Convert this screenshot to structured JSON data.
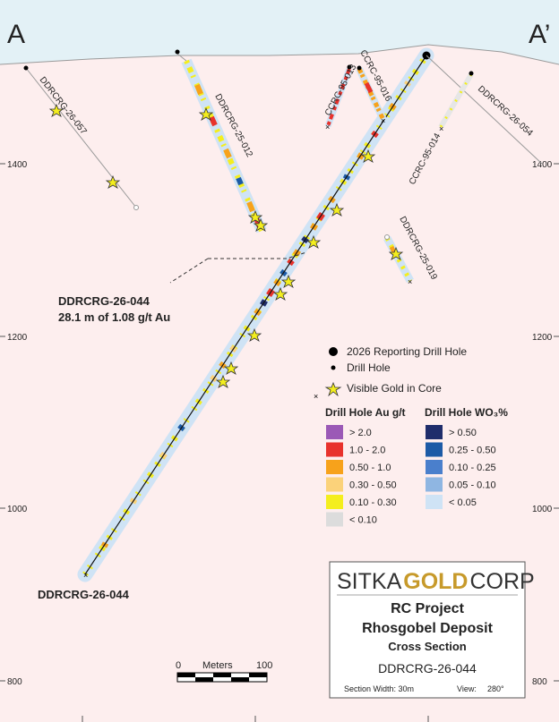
{
  "section": {
    "label_left": "A",
    "label_right": "A’",
    "elevations_left": [
      "1400",
      "1200",
      "1000",
      "800"
    ],
    "elevations_right": [
      "1400",
      "1200",
      "1000",
      "800"
    ]
  },
  "holes": [
    {
      "name": "DDRCRG-26-057"
    },
    {
      "name": "DDRCRG-25-012"
    },
    {
      "name": "CCRC-95-013"
    },
    {
      "name": "CCRC-95-016"
    },
    {
      "name": "DDRCRG-26-054"
    },
    {
      "name": "CCRC-95-014"
    },
    {
      "name": "DDRCRG-25-019"
    },
    {
      "name": "DDRCRG-26-044"
    }
  ],
  "callout": {
    "line1": "DDRCRG-26-044",
    "line2": "28.1 m of 1.08 g/t Au"
  },
  "legend": {
    "reporting_hole": "2026 Reporting Drill Hole",
    "drill_hole": "Drill Hole",
    "visible_gold": "Visible Gold in Core",
    "au_title": "Drill Hole Au g/t",
    "au_classes": [
      {
        "label": "> 2.0",
        "color": "#9b59b6"
      },
      {
        "label": "1.0 - 2.0",
        "color": "#e8322c"
      },
      {
        "label": "0.50 - 1.0",
        "color": "#f7a21b"
      },
      {
        "label": "0.30 - 0.50",
        "color": "#fbd27a"
      },
      {
        "label": "0.10 - 0.30",
        "color": "#f4ee1e"
      },
      {
        "label": "< 0.10",
        "color": "#dcdcdc"
      }
    ],
    "wo3_title": "Drill Hole WO₃%",
    "wo3_classes": [
      {
        "label": "> 0.50",
        "color": "#1f2d6b"
      },
      {
        "label": "0.25 - 0.50",
        "color": "#1c5aa6"
      },
      {
        "label": "0.10 - 0.25",
        "color": "#4a7fcc"
      },
      {
        "label": "0.05 - 0.10",
        "color": "#8fb6e2"
      },
      {
        "label": "< 0.05",
        "color": "#cfe3f5"
      }
    ]
  },
  "scale": {
    "zero": "0",
    "units": "Meters",
    "end": "100"
  },
  "titleblock": {
    "company_a": "SITKA",
    "company_b": "GOLD",
    "company_c": "CORP",
    "project": "RC Project",
    "deposit": "Rhosgobel Deposit",
    "view_type": "Cross Section",
    "hole": "DDRCRG-26-044",
    "width_label": "Section Width: 30m",
    "view_label": "View:",
    "view_value": "280°"
  },
  "colors": {
    "sky": "#e3f1f6",
    "ground": "#fdeeee",
    "hole_halo": "#cfe3f5"
  }
}
